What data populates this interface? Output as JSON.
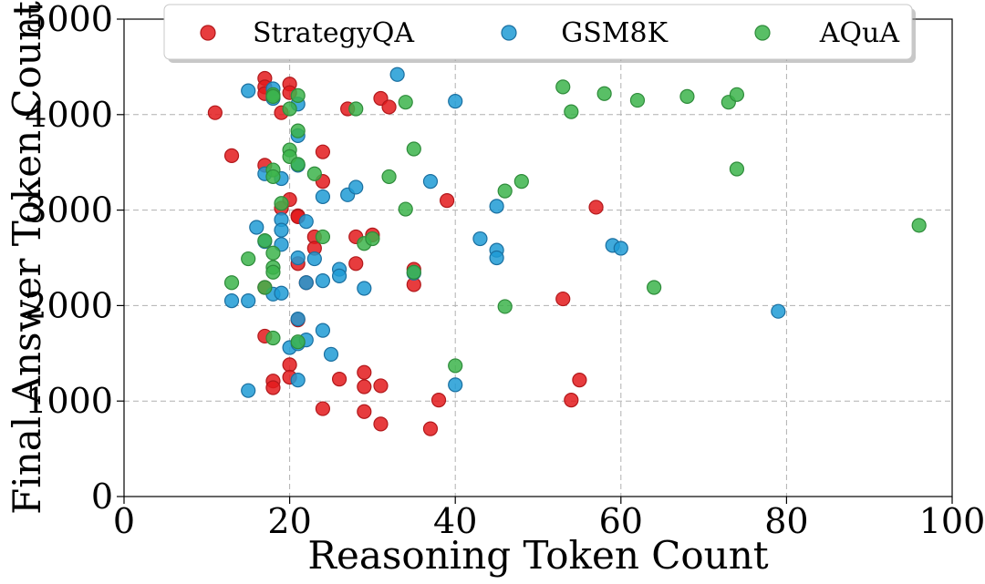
{
  "chart_data": {
    "type": "scatter",
    "xlabel": "Reasoning Token Count",
    "ylabel": "Final Answer Token Count",
    "xlim": [
      0,
      100
    ],
    "ylim": [
      0,
      5000
    ],
    "xticks": [
      0,
      20,
      40,
      60,
      80,
      100
    ],
    "yticks": [
      0,
      1000,
      2000,
      3000,
      4000,
      5000
    ],
    "grid": true,
    "legend_position": "top",
    "series": [
      {
        "name": "StrategyQA",
        "color": "#e31a1c",
        "edge": "#b2181b",
        "points": [
          [
            11,
            4020
          ],
          [
            13,
            3570
          ],
          [
            17,
            4380
          ],
          [
            17,
            4290
          ],
          [
            17,
            4220
          ],
          [
            20,
            4320
          ],
          [
            20,
            4230
          ],
          [
            19,
            4020
          ],
          [
            17,
            3470
          ],
          [
            24,
            3610
          ],
          [
            24,
            3300
          ],
          [
            20,
            3110
          ],
          [
            19,
            3020
          ],
          [
            21,
            2940
          ],
          [
            21,
            2930
          ],
          [
            23,
            2720
          ],
          [
            23,
            2600
          ],
          [
            21,
            2440
          ],
          [
            17,
            2190
          ],
          [
            22,
            2240
          ],
          [
            28,
            2720
          ],
          [
            28,
            2440
          ],
          [
            30,
            2740
          ],
          [
            27,
            4060
          ],
          [
            31,
            4170
          ],
          [
            32,
            4080
          ],
          [
            39,
            3100
          ],
          [
            35,
            2380
          ],
          [
            35,
            2220
          ],
          [
            57,
            3030
          ],
          [
            53,
            2070
          ],
          [
            21,
            1850
          ],
          [
            17,
            1680
          ],
          [
            20,
            1380
          ],
          [
            18,
            1210
          ],
          [
            20,
            1250
          ],
          [
            18,
            1140
          ],
          [
            26,
            1230
          ],
          [
            29,
            1300
          ],
          [
            29,
            1150
          ],
          [
            31,
            1160
          ],
          [
            24,
            920
          ],
          [
            29,
            890
          ],
          [
            31,
            760
          ],
          [
            37,
            710
          ],
          [
            38,
            1010
          ],
          [
            54,
            1010
          ],
          [
            55,
            1220
          ]
        ]
      },
      {
        "name": "GSM8K",
        "color": "#1f9bd5",
        "edge": "#1a6fa0",
        "points": [
          [
            15,
            4250
          ],
          [
            18,
            4270
          ],
          [
            18,
            4170
          ],
          [
            21,
            4110
          ],
          [
            33,
            4420
          ],
          [
            40,
            4140
          ],
          [
            21,
            3780
          ],
          [
            17,
            3380
          ],
          [
            19,
            3330
          ],
          [
            21,
            3470
          ],
          [
            24,
            3140
          ],
          [
            27,
            3160
          ],
          [
            28,
            3240
          ],
          [
            37,
            3300
          ],
          [
            16,
            2820
          ],
          [
            17,
            2670
          ],
          [
            19,
            2900
          ],
          [
            19,
            2640
          ],
          [
            22,
            2880
          ],
          [
            19,
            2790
          ],
          [
            21,
            2500
          ],
          [
            23,
            2490
          ],
          [
            26,
            2380
          ],
          [
            26,
            2310
          ],
          [
            24,
            2260
          ],
          [
            22,
            2240
          ],
          [
            18,
            2120
          ],
          [
            19,
            2130
          ],
          [
            29,
            2180
          ],
          [
            35,
            2340
          ],
          [
            43,
            2700
          ],
          [
            45,
            3040
          ],
          [
            45,
            2580
          ],
          [
            45,
            2500
          ],
          [
            59,
            2630
          ],
          [
            60,
            2600
          ],
          [
            13,
            2050
          ],
          [
            15,
            2050
          ],
          [
            79,
            1940
          ],
          [
            21,
            1860
          ],
          [
            24,
            1740
          ],
          [
            20,
            1560
          ],
          [
            21,
            1600
          ],
          [
            22,
            1640
          ],
          [
            25,
            1490
          ],
          [
            15,
            1110
          ],
          [
            21,
            1220
          ],
          [
            40,
            1170
          ]
        ]
      },
      {
        "name": "AQuA",
        "color": "#3cb44b",
        "edge": "#2e8b3a",
        "points": [
          [
            18,
            4210
          ],
          [
            18,
            4190
          ],
          [
            21,
            4200
          ],
          [
            20,
            4060
          ],
          [
            28,
            4060
          ],
          [
            34,
            4130
          ],
          [
            53,
            4290
          ],
          [
            54,
            4030
          ],
          [
            58,
            4220
          ],
          [
            62,
            4150
          ],
          [
            68,
            4190
          ],
          [
            73,
            4130
          ],
          [
            74,
            4210
          ],
          [
            21,
            3830
          ],
          [
            20,
            3630
          ],
          [
            20,
            3560
          ],
          [
            21,
            3480
          ],
          [
            35,
            3640
          ],
          [
            18,
            3420
          ],
          [
            18,
            3350
          ],
          [
            23,
            3380
          ],
          [
            32,
            3350
          ],
          [
            74,
            3430
          ],
          [
            46,
            3200
          ],
          [
            48,
            3300
          ],
          [
            19,
            3070
          ],
          [
            34,
            3010
          ],
          [
            17,
            2680
          ],
          [
            24,
            2720
          ],
          [
            29,
            2650
          ],
          [
            30,
            2700
          ],
          [
            96,
            2840
          ],
          [
            15,
            2490
          ],
          [
            18,
            2550
          ],
          [
            18,
            2400
          ],
          [
            18,
            2350
          ],
          [
            13,
            2240
          ],
          [
            17,
            2190
          ],
          [
            35,
            2350
          ],
          [
            64,
            2190
          ],
          [
            46,
            1990
          ],
          [
            18,
            1660
          ],
          [
            21,
            1620
          ],
          [
            40,
            1370
          ]
        ]
      }
    ]
  }
}
